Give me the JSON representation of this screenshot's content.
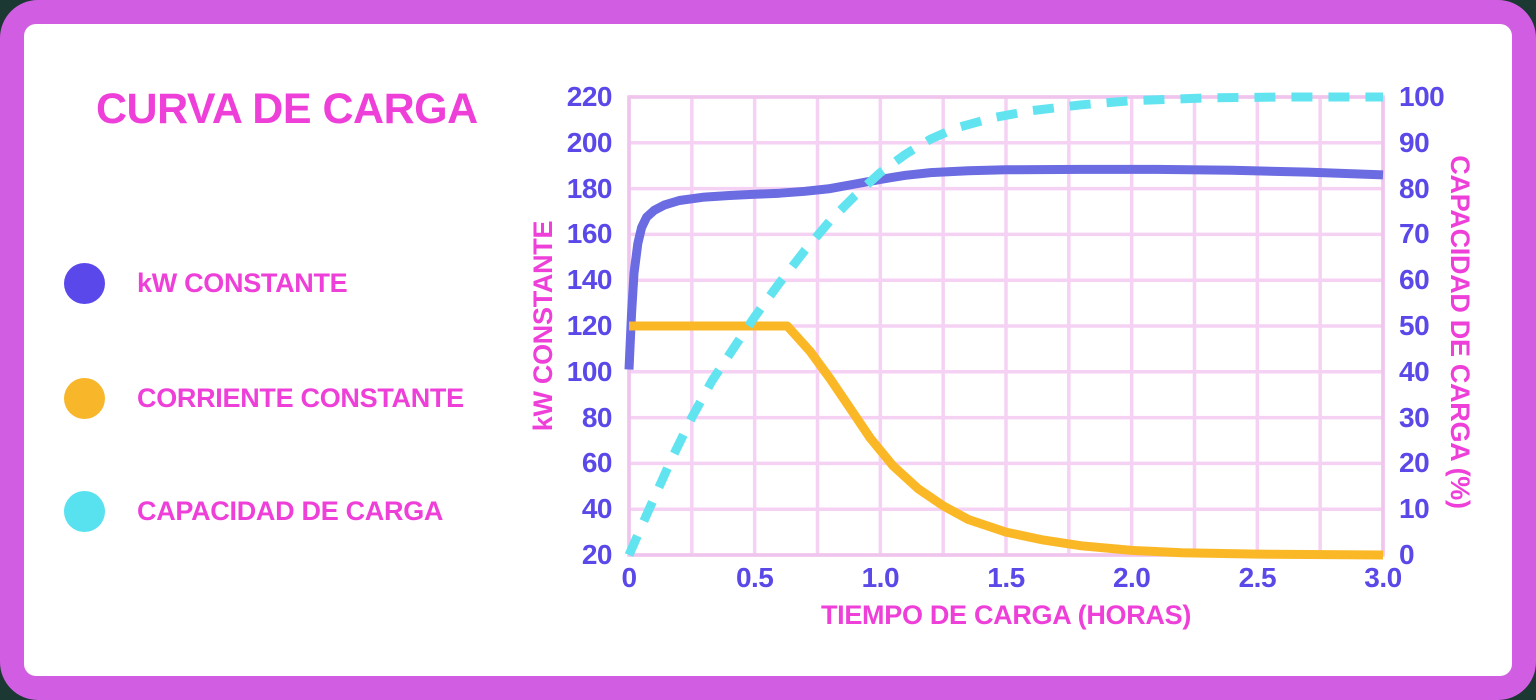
{
  "title": "CURVA DE CARGA",
  "legend": {
    "items": [
      {
        "label": "kW CONSTANTE",
        "color": "#5b48ea"
      },
      {
        "label": "CORRIENTE CONSTANTE",
        "color": "#f8b62a"
      },
      {
        "label": "CAPACIDAD DE CARGA",
        "color": "#58e1ee"
      }
    ]
  },
  "colors": {
    "outer_background": "#1c3833",
    "frame": "#d15ee2",
    "card": "#ffffff",
    "heading": "#ee3fd9",
    "tick": "#5a49e8",
    "grid": "#f5d2f4",
    "plot_border": "#efc4ed"
  },
  "chart_data": {
    "type": "line",
    "title": "CURVA DE CARGA",
    "xlabel": "TIEMPO DE CARGA (HORAS)",
    "ylabel_left": "kW CONSTANTE",
    "ylabel_right": "CAPACIDAD DE CARGA (%)",
    "x_range": [
      0,
      3
    ],
    "y_left_range": [
      20,
      220
    ],
    "y_right_range": [
      0,
      100
    ],
    "x_grid_step": 0.25,
    "y_left_grid_step": 20,
    "grid": true,
    "legend_position": "left",
    "x_ticks": [
      "0",
      "0.5",
      "1.0",
      "1.5",
      "2.0",
      "2.5",
      "3.0"
    ],
    "y_left_ticks": [
      "220",
      "200",
      "180",
      "160",
      "140",
      "120",
      "100",
      "80",
      "60",
      "40",
      "20"
    ],
    "y_right_ticks": [
      "100",
      "90",
      "80",
      "70",
      "60",
      "50",
      "40",
      "30",
      "20",
      "10",
      "0"
    ],
    "series": [
      {
        "name": "kW CONSTANTE",
        "axis": "left",
        "style": "solid",
        "color": "#6b6be2",
        "points": [
          [
            0,
            101
          ],
          [
            0.01,
            125
          ],
          [
            0.02,
            143
          ],
          [
            0.035,
            156
          ],
          [
            0.05,
            163
          ],
          [
            0.07,
            167.5
          ],
          [
            0.1,
            170.5
          ],
          [
            0.14,
            172.8
          ],
          [
            0.2,
            174.8
          ],
          [
            0.3,
            176.3
          ],
          [
            0.4,
            177
          ],
          [
            0.5,
            177.5
          ],
          [
            0.6,
            178
          ],
          [
            0.7,
            178.8
          ],
          [
            0.8,
            180
          ],
          [
            0.9,
            182
          ],
          [
            1.0,
            184
          ],
          [
            1.1,
            185.8
          ],
          [
            1.2,
            187
          ],
          [
            1.35,
            187.8
          ],
          [
            1.5,
            188.2
          ],
          [
            1.8,
            188.4
          ],
          [
            2.1,
            188.4
          ],
          [
            2.4,
            188
          ],
          [
            2.7,
            187.2
          ],
          [
            3.0,
            186
          ]
        ]
      },
      {
        "name": "CORRIENTE CONSTANTE",
        "axis": "left",
        "style": "solid",
        "color": "#fbb826",
        "points": [
          [
            0,
            120
          ],
          [
            0.63,
            120
          ],
          [
            0.72,
            109
          ],
          [
            0.8,
            97
          ],
          [
            0.88,
            84
          ],
          [
            0.96,
            71
          ],
          [
            1.05,
            59
          ],
          [
            1.15,
            49
          ],
          [
            1.25,
            41.5
          ],
          [
            1.35,
            35.5
          ],
          [
            1.5,
            30
          ],
          [
            1.65,
            26.5
          ],
          [
            1.8,
            24
          ],
          [
            2.0,
            22
          ],
          [
            2.2,
            21
          ],
          [
            2.5,
            20.4
          ],
          [
            3.0,
            20
          ]
        ]
      },
      {
        "name": "CAPACIDAD DE CARGA",
        "axis": "right",
        "style": "dashed",
        "color": "#62e4f0",
        "points": [
          [
            0,
            0
          ],
          [
            0.08,
            10
          ],
          [
            0.17,
            21
          ],
          [
            0.25,
            30
          ],
          [
            0.33,
            38
          ],
          [
            0.42,
            45.5
          ],
          [
            0.5,
            52
          ],
          [
            0.6,
            59.5
          ],
          [
            0.7,
            66.5
          ],
          [
            0.8,
            73
          ],
          [
            0.9,
            78.5
          ],
          [
            1.0,
            83.5
          ],
          [
            1.1,
            87.5
          ],
          [
            1.2,
            90.8
          ],
          [
            1.3,
            93.2
          ],
          [
            1.45,
            95.5
          ],
          [
            1.6,
            97
          ],
          [
            1.8,
            98.3
          ],
          [
            2.0,
            99.2
          ],
          [
            2.3,
            99.8
          ],
          [
            2.6,
            100
          ],
          [
            3.0,
            100
          ]
        ]
      }
    ]
  }
}
